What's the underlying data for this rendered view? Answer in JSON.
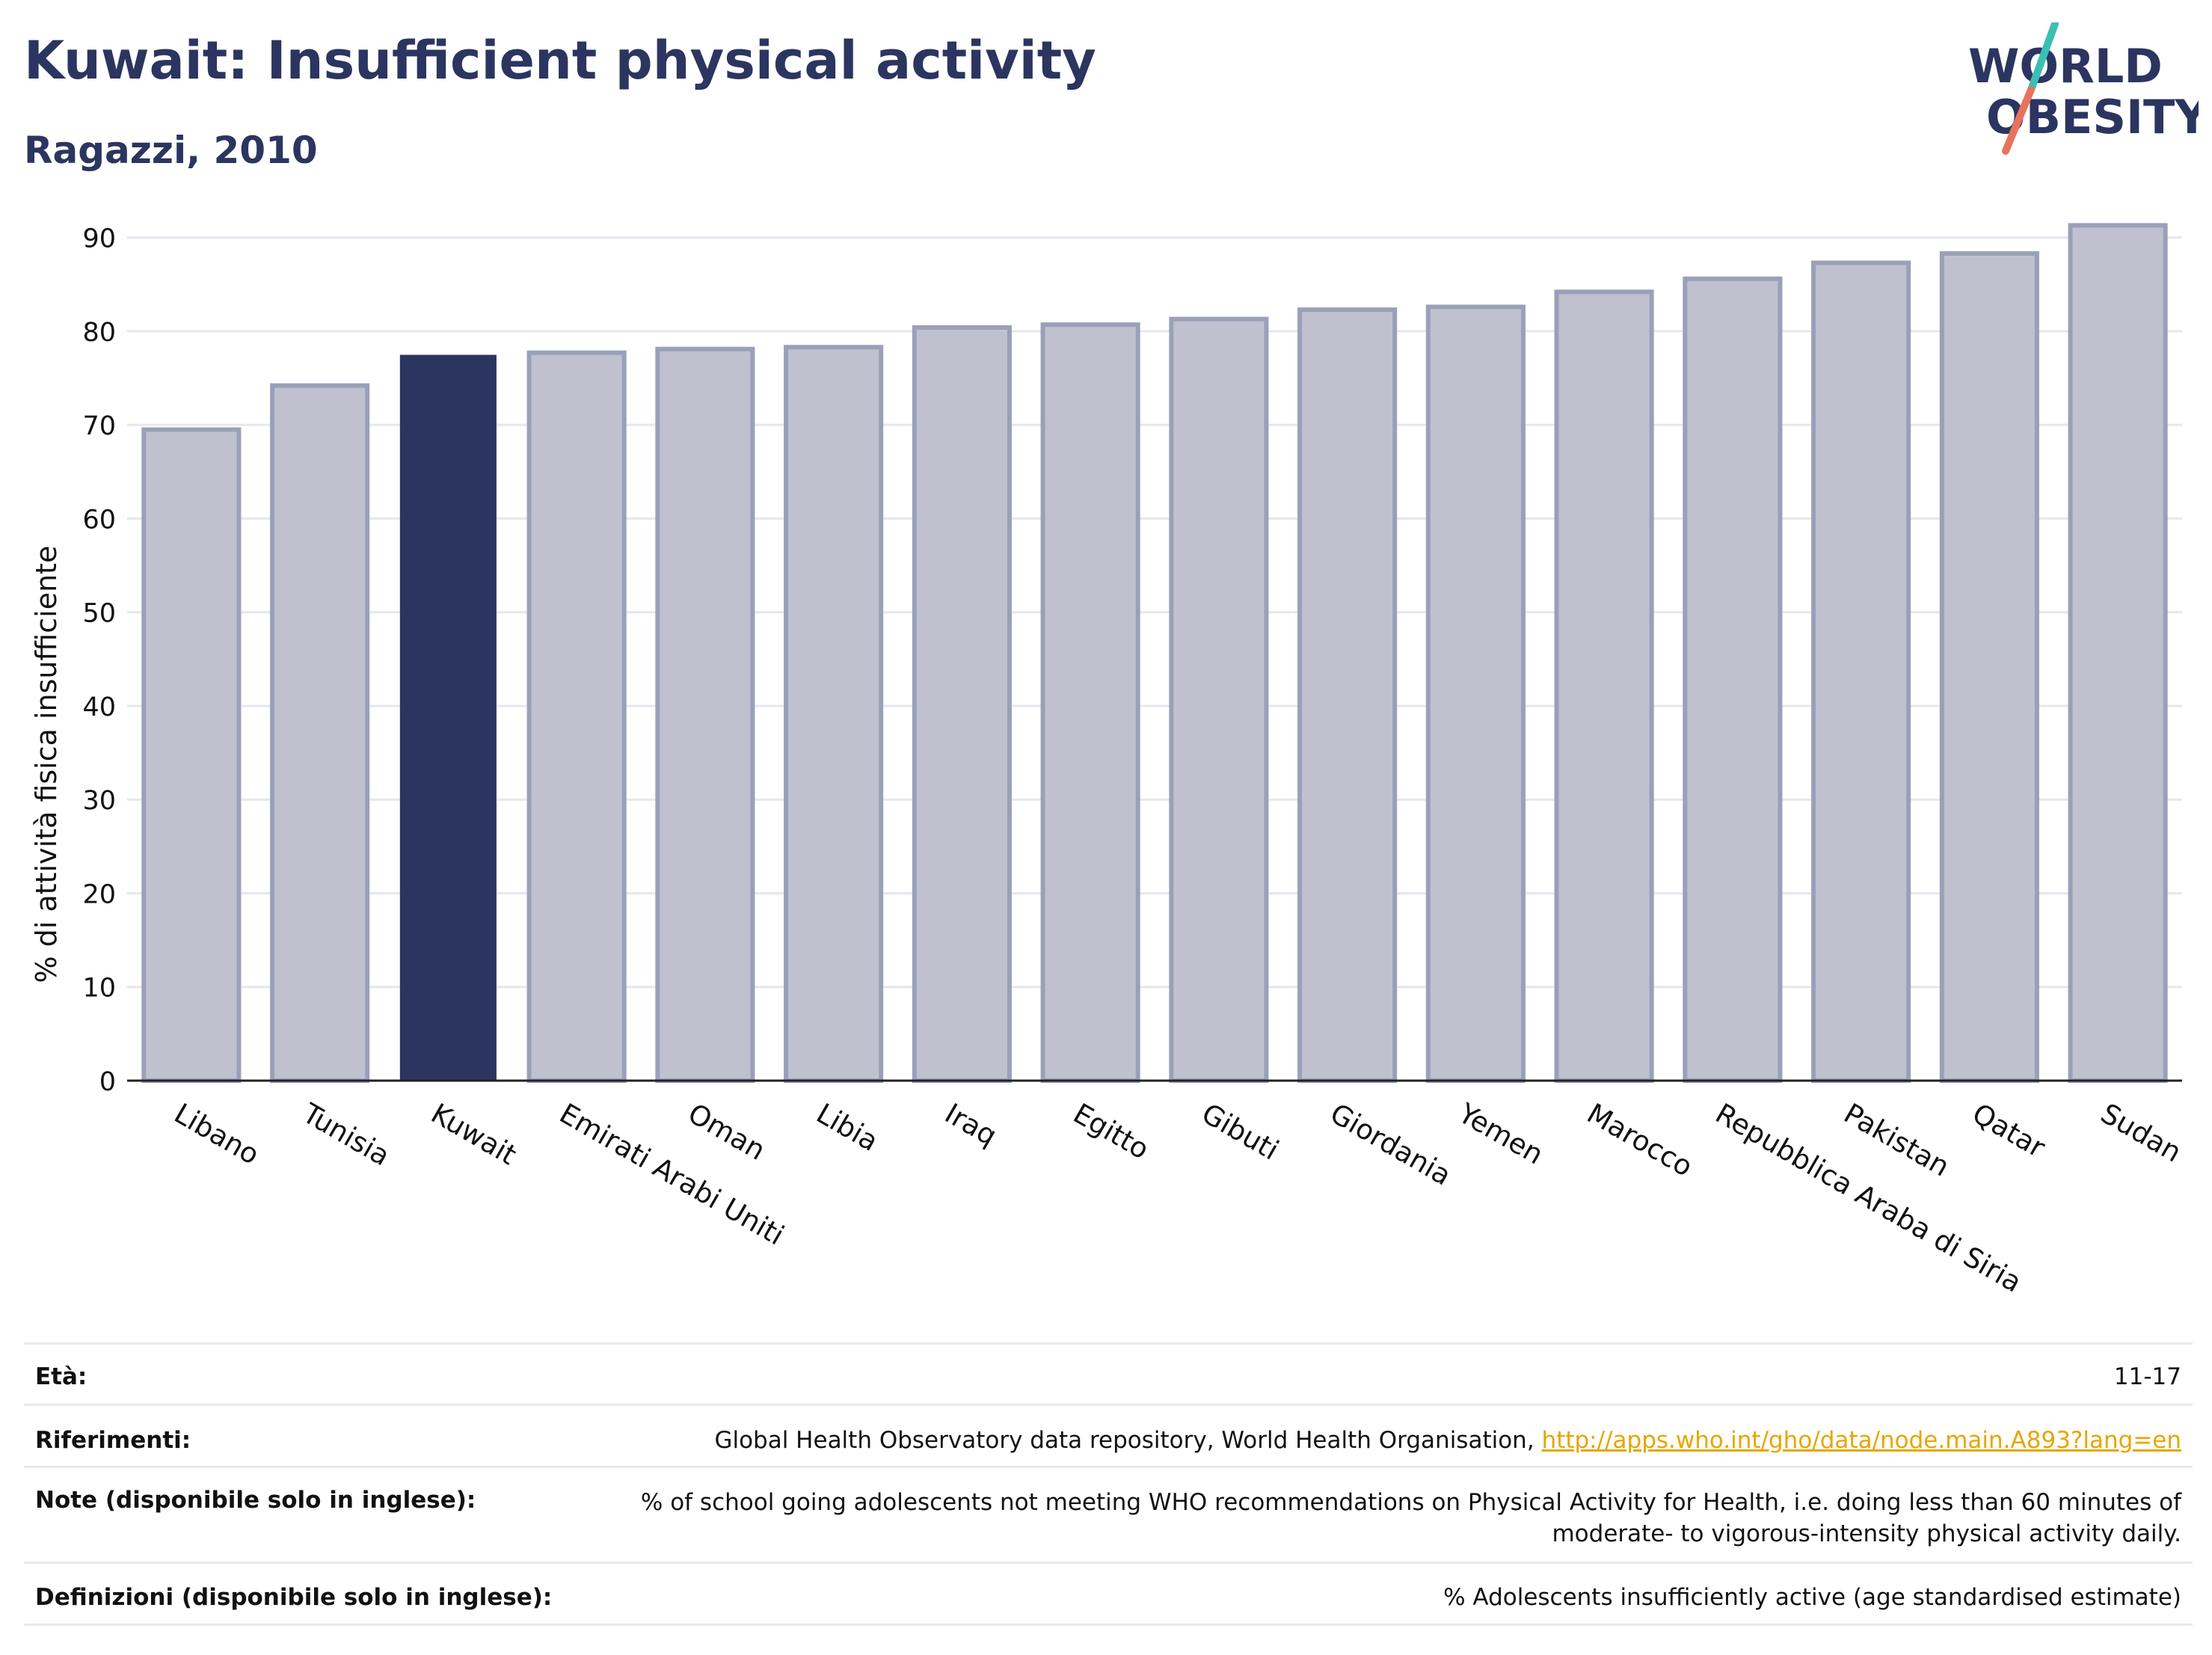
{
  "header": {
    "title": "Kuwait: Insufficient physical activity",
    "subtitle": "Ragazzi, 2010"
  },
  "logo": {
    "line1": "WORLD",
    "line2": "OBESITY",
    "colors": {
      "text": "#2b3560",
      "slash_teal": "#3bbfb3",
      "slash_coral": "#e8735d"
    }
  },
  "chart_data": {
    "type": "bar",
    "categories": [
      "Libano",
      "Tunisia",
      "Kuwait",
      "Emirati Arabi Uniti",
      "Oman",
      "Libia",
      "Iraq",
      "Egitto",
      "Gibuti",
      "Giordania",
      "Yemen",
      "Marocco",
      "Repubblica Araba di Siria",
      "Pakistan",
      "Qatar",
      "Sudan"
    ],
    "values": [
      69.5,
      74.2,
      77.4,
      77.7,
      78.1,
      78.3,
      80.4,
      80.7,
      81.3,
      82.3,
      82.6,
      84.2,
      85.6,
      87.3,
      88.3,
      91.3
    ],
    "highlight": "Kuwait",
    "ylabel": "% di attività fisica insufficiente",
    "xlabel": "",
    "ylim": [
      0,
      95
    ],
    "yticks": [
      0,
      10,
      20,
      30,
      40,
      50,
      60,
      70,
      80,
      90
    ],
    "grid": true,
    "colors": {
      "bar": "#bfc2ce",
      "bar_edge": "#9aa0b8",
      "highlight": "#2b3560",
      "grid": "#e6e7ee"
    }
  },
  "info_table": {
    "rows": [
      {
        "key": "Età:",
        "value": "11-17"
      },
      {
        "key": "Riferimenti:",
        "value": "Global Health Observatory data repository, World Health Organisation, ",
        "link": "http://apps.who.int/gho/data/node.main.A893?lang=en"
      },
      {
        "key": "Note (disponibile solo in inglese):",
        "value_line1": "% of school going adolescents not meeting WHO recommendations on Physical Activity for Health, i.e. doing less than 60 minutes of",
        "value_line2": "moderate- to vigorous-intensity physical activity daily."
      },
      {
        "key": "Definizioni (disponibile solo in inglese):",
        "value": "% Adolescents insufficiently active (age standardised estimate)"
      }
    ]
  }
}
